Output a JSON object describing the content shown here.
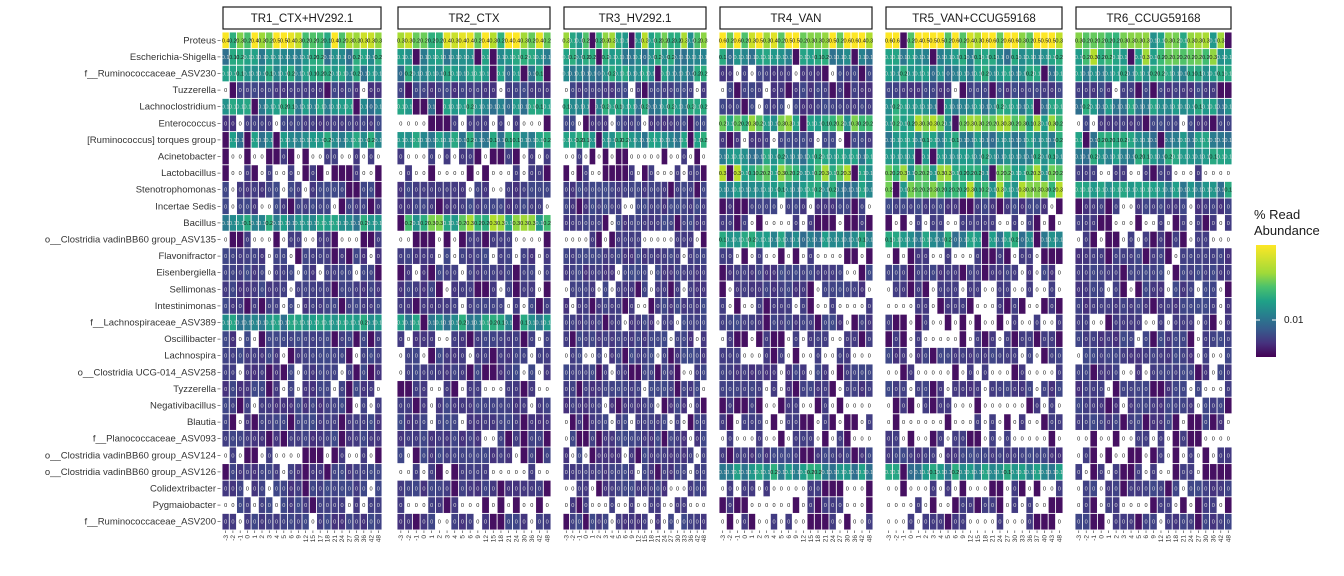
{
  "chart_data": {
    "type": "heatmap",
    "title": "",
    "xlabel": "",
    "ylabel": "",
    "panels": [
      {
        "name": "TR1_CTX+HV292.1",
        "days": [
          "-3",
          "-2",
          "-1",
          "0",
          "1",
          "2",
          "3",
          "4",
          "5",
          "6",
          "9",
          "12",
          "15",
          "17",
          "18",
          "21",
          "24",
          "27",
          "30",
          "36",
          "42",
          "48"
        ]
      },
      {
        "name": "TR2_CTX",
        "days": [
          "-3",
          "-2",
          "-1",
          "0",
          "1",
          "2",
          "3",
          "4",
          "5",
          "6",
          "9",
          "12",
          "15",
          "18",
          "21",
          "24",
          "30",
          "36",
          "42",
          "48"
        ]
      },
      {
        "name": "TR3_HV292.1",
        "days": [
          "-3",
          "-2",
          "-1",
          "0",
          "1",
          "2",
          "3",
          "4",
          "5",
          "6",
          "9",
          "12",
          "15",
          "18",
          "21",
          "24",
          "27",
          "30",
          "33",
          "36",
          "42",
          "48"
        ]
      },
      {
        "name": "TR4_VAN",
        "days": [
          "-3",
          "-2",
          "-1",
          "0",
          "1",
          "2",
          "3",
          "4",
          "5",
          "6",
          "9",
          "12",
          "15",
          "18",
          "21",
          "24",
          "27",
          "30",
          "36",
          "42",
          "48"
        ]
      },
      {
        "name": "TR5_VAN+CCUG59168",
        "days": [
          "-3",
          "-2",
          "-1",
          "0",
          "1",
          "2",
          "3",
          "4",
          "5",
          "6",
          "9",
          "12",
          "15",
          "18",
          "21",
          "24",
          "27",
          "30",
          "33",
          "36",
          "37",
          "40",
          "43",
          "48"
        ]
      },
      {
        "name": "TR6_CCUG59168",
        "days": [
          "-3",
          "-2",
          "-1",
          "0",
          "1",
          "2",
          "3",
          "4",
          "5",
          "6",
          "9",
          "12",
          "15",
          "18",
          "21",
          "24",
          "27",
          "30",
          "36",
          "42",
          "48"
        ]
      }
    ],
    "taxa": [
      "Proteus",
      "Escherichia-Shigella",
      "f__Ruminococcaceae_ASV230",
      "Tuzzerella",
      "Lachnoclostridium",
      "Enterococcus",
      "[Ruminococcus] torques group",
      "Acinetobacter",
      "Lactobacillus",
      "Stenotrophomonas",
      "Incertae Sedis",
      "Bacillus",
      "o__Clostridia vadinBB60 group_ASV135",
      "Flavonifractor",
      "Eisenbergiella",
      "Sellimonas",
      "Intestinimonas",
      "f__Lachnospiraceae_ASV389",
      "Oscillibacter",
      "Lachnospira",
      "o__Clostridia UCG-014_ASV258",
      "Tyzzerella",
      "Negativibacillus",
      "Blautia",
      "f__Planococcaceae_ASV093",
      "o__Clostridia vadinBB60 group_ASV124",
      "o__Clostridia vadinBB60 group_ASV126",
      "Colidextribacter",
      "Pygmaiobacter",
      "f__Ruminococcaceae_ASV200"
    ],
    "value_encoding": "% Read Abundance",
    "zero_cells": "white cell labelled 0",
    "color_scale": {
      "name": "viridis",
      "low": "#440154",
      "high": "#fde725",
      "ticks": [
        "0.01"
      ]
    },
    "legend": {
      "title_line1": "% Read",
      "title_line2": "Abundance",
      "position": "right"
    },
    "approximate_row_levels": {
      "TR1_CTX+HV292.1": [
        0.3,
        0.1,
        0.1,
        0.01,
        0.1,
        0.01,
        0.1,
        0.001,
        0.001,
        0.01,
        0.01,
        0.1,
        0.002,
        0.01,
        0.01,
        0.01,
        0.01,
        0.1,
        0.01,
        0.01,
        0.01,
        0.01,
        0.01,
        0.01,
        0.01,
        0.001,
        0.01,
        0.01,
        0.01,
        0.01
      ],
      "TR2_CTX": [
        0.3,
        0.1,
        0.1,
        0.01,
        0.1,
        0.001,
        0.1,
        0.001,
        0.001,
        0.01,
        0.01,
        0.2,
        0.001,
        0.01,
        0.01,
        0.01,
        0.01,
        0.1,
        0.01,
        0.01,
        0.01,
        0.001,
        0.01,
        0.01,
        0.01,
        0.01,
        0.001,
        0.01,
        0.003,
        0.01
      ],
      "TR3_HV292.1": [
        0.2,
        0.1,
        0.1,
        0.01,
        0.1,
        0.01,
        0.1,
        0.001,
        0.001,
        0.01,
        0.01,
        0.01,
        0.001,
        0.01,
        0.01,
        0.01,
        0.01,
        0.01,
        0.01,
        0.01,
        0.01,
        0.01,
        0.01,
        0.01,
        0.01,
        0.01,
        0.01,
        0.01,
        0.002,
        0.01
      ],
      "TR4_VAN": [
        0.4,
        0.1,
        0.01,
        0.01,
        0.01,
        0.2,
        0.01,
        0.1,
        0.2,
        0.1,
        0.01,
        0.001,
        0.1,
        0.001,
        0.01,
        0.01,
        0.001,
        0.01,
        0.001,
        0.001,
        0.01,
        0.01,
        0.001,
        0.001,
        0.001,
        0.01,
        0.1,
        0.001,
        0.001,
        0.001
      ],
      "TR5_VAN+CCUG59168": [
        0.4,
        0.1,
        0.1,
        0.01,
        0.1,
        0.2,
        0.1,
        0.1,
        0.2,
        0.2,
        0.01,
        0.001,
        0.1,
        0.001,
        0.01,
        0.001,
        0.001,
        0.001,
        0.001,
        0.01,
        0.001,
        0.01,
        0.001,
        0.001,
        0.001,
        0.01,
        0.1,
        0.001,
        0.001,
        0.001
      ],
      "TR6_CCUG59168": [
        0.2,
        0.2,
        0.1,
        0.01,
        0.1,
        0.01,
        0.1,
        0.1,
        0.001,
        0.1,
        0.01,
        0.001,
        0.001,
        0.01,
        0.01,
        0.01,
        0.01,
        0.001,
        0.01,
        0.01,
        0.01,
        0.01,
        0.01,
        0.01,
        0.001,
        0.001,
        0.001,
        0.01,
        0.001,
        0.01
      ]
    }
  }
}
